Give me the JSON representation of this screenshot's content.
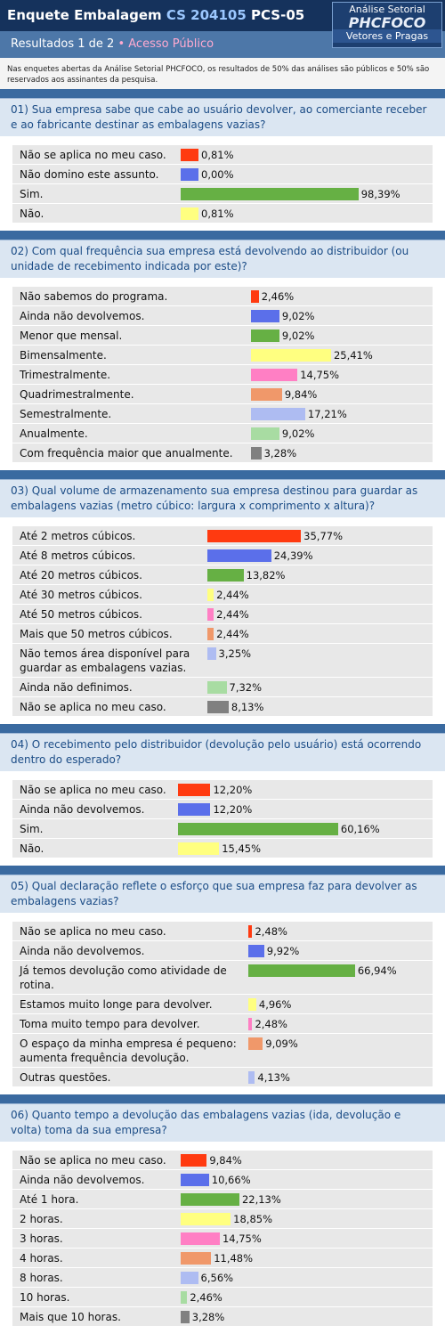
{
  "header": {
    "title": "Enquete Embalagem",
    "code": "CS 204105",
    "id": "PCS-05",
    "logo_top": "Análise Setorial",
    "logo_brand": "PHCFOCO",
    "logo_bottom": "Vetores e Pragas",
    "results": "Resultados 1 de 2",
    "bullet": "•",
    "access": "Acesso Público",
    "note": "Nas enquetes abertas da Análise Setorial PHCFOCO, os resultados de 50% das análises são públicos e 50% são reservados aos assinantes da pesquisa."
  },
  "colors": [
    "#ff3a10",
    "#5b6fea",
    "#66b044",
    "#ffff80",
    "#ff7fc4",
    "#f0986a",
    "#aebcf2",
    "#a8dca2",
    "#808080"
  ],
  "questions": [
    {
      "title": "01) Sua empresa sabe que cabe ao usuário devolver, ao comerciante receber e ao fabricante destinar as embalagens vazias?",
      "options": [
        {
          "label": "Não se aplica no meu caso.",
          "value": 0.81,
          "value_label": "0,81%"
        },
        {
          "label": "Não domino este assunto.",
          "value": 0.0,
          "value_label": "0,00%"
        },
        {
          "label": "Sim.",
          "value": 98.39,
          "value_label": "98,39%"
        },
        {
          "label": "Não.",
          "value": 0.81,
          "value_label": "0,81%"
        }
      ]
    },
    {
      "title": "02) Com qual frequência sua empresa está devolvendo ao distribuidor (ou unidade de recebimento indicada por este)?",
      "options": [
        {
          "label": "Não sabemos do programa.",
          "value": 2.46,
          "value_label": "2,46%"
        },
        {
          "label": "Ainda não devolvemos.",
          "value": 9.02,
          "value_label": "9,02%"
        },
        {
          "label": "Menor que mensal.",
          "value": 9.02,
          "value_label": "9,02%"
        },
        {
          "label": "Bimensalmente.",
          "value": 25.41,
          "value_label": "25,41%"
        },
        {
          "label": "Trimestralmente.",
          "value": 14.75,
          "value_label": "14,75%"
        },
        {
          "label": "Quadrimestralmente.",
          "value": 9.84,
          "value_label": "9,84%"
        },
        {
          "label": "Semestralmente.",
          "value": 17.21,
          "value_label": "17,21%"
        },
        {
          "label": "Anualmente.",
          "value": 9.02,
          "value_label": "9,02%"
        },
        {
          "label": "Com frequência maior que anualmente.",
          "value": 3.28,
          "value_label": "3,28%"
        }
      ]
    },
    {
      "title": "03) Qual volume de armazenamento sua empresa destinou para guardar as embalagens vazias (metro cúbico: largura x comprimento x altura)?",
      "options": [
        {
          "label": "Até 2 metros cúbicos.",
          "value": 35.77,
          "value_label": "35,77%"
        },
        {
          "label": "Até 8 metros cúbicos.",
          "value": 24.39,
          "value_label": "24,39%"
        },
        {
          "label": "Até 20 metros cúbicos.",
          "value": 13.82,
          "value_label": "13,82%"
        },
        {
          "label": "Até 30 metros cúbicos.",
          "value": 2.44,
          "value_label": "2,44%"
        },
        {
          "label": "Até 50 metros cúbicos.",
          "value": 2.44,
          "value_label": "2,44%"
        },
        {
          "label": "Mais que 50 metros cúbicos.",
          "value": 2.44,
          "value_label": "2,44%"
        },
        {
          "label": "Não temos área disponível para guardar as embalagens vazias.",
          "value": 3.25,
          "value_label": "3,25%"
        },
        {
          "label": "Ainda não definimos.",
          "value": 7.32,
          "value_label": "7,32%"
        },
        {
          "label": "Não se aplica no meu caso.",
          "value": 8.13,
          "value_label": "8,13%"
        }
      ]
    },
    {
      "title": "04) O recebimento pelo distribuidor (devolução pelo usuário) está ocorrendo dentro do esperado?",
      "options": [
        {
          "label": "Não se aplica no meu caso.",
          "value": 12.2,
          "value_label": "12,20%"
        },
        {
          "label": "Ainda não devolvemos.",
          "value": 12.2,
          "value_label": "12,20%"
        },
        {
          "label": "Sim.",
          "value": 60.16,
          "value_label": "60,16%"
        },
        {
          "label": "Não.",
          "value": 15.45,
          "value_label": "15,45%"
        }
      ]
    },
    {
      "title": "05) Qual declaração reflete o esforço que sua empresa faz para devolver as embalagens vazias?",
      "options": [
        {
          "label": "Não se aplica no meu caso.",
          "value": 2.48,
          "value_label": "2,48%"
        },
        {
          "label": "Ainda não devolvemos.",
          "value": 9.92,
          "value_label": "9,92%"
        },
        {
          "label": "Já temos devolução como atividade de rotina.",
          "value": 66.94,
          "value_label": "66,94%"
        },
        {
          "label": "Estamos muito longe para devolver.",
          "value": 4.96,
          "value_label": "4,96%"
        },
        {
          "label": "Toma muito tempo para devolver.",
          "value": 2.48,
          "value_label": "2,48%"
        },
        {
          "label": "O espaço da minha empresa é pequeno: aumenta frequência devolução.",
          "value": 9.09,
          "value_label": "9,09%"
        },
        {
          "label": "Outras questões.",
          "value": 4.13,
          "value_label": "4,13%"
        }
      ]
    },
    {
      "title": "06) Quanto tempo a devolução das embalagens vazias (ida, devolução e volta) toma da sua empresa?",
      "options": [
        {
          "label": "Não se aplica no meu caso.",
          "value": 9.84,
          "value_label": "9,84%"
        },
        {
          "label": "Ainda não devolvemos.",
          "value": 10.66,
          "value_label": "10,66%"
        },
        {
          "label": "Até 1 hora.",
          "value": 22.13,
          "value_label": "22,13%"
        },
        {
          "label": "2 horas.",
          "value": 18.85,
          "value_label": "18,85%"
        },
        {
          "label": "3 horas.",
          "value": 14.75,
          "value_label": "14,75%"
        },
        {
          "label": "4 horas.",
          "value": 11.48,
          "value_label": "11,48%"
        },
        {
          "label": "8 horas.",
          "value": 6.56,
          "value_label": "6,56%"
        },
        {
          "label": "10 horas.",
          "value": 2.46,
          "value_label": "2,46%"
        },
        {
          "label": "Mais que 10 horas.",
          "value": 3.28,
          "value_label": "3,28%"
        }
      ]
    }
  ]
}
